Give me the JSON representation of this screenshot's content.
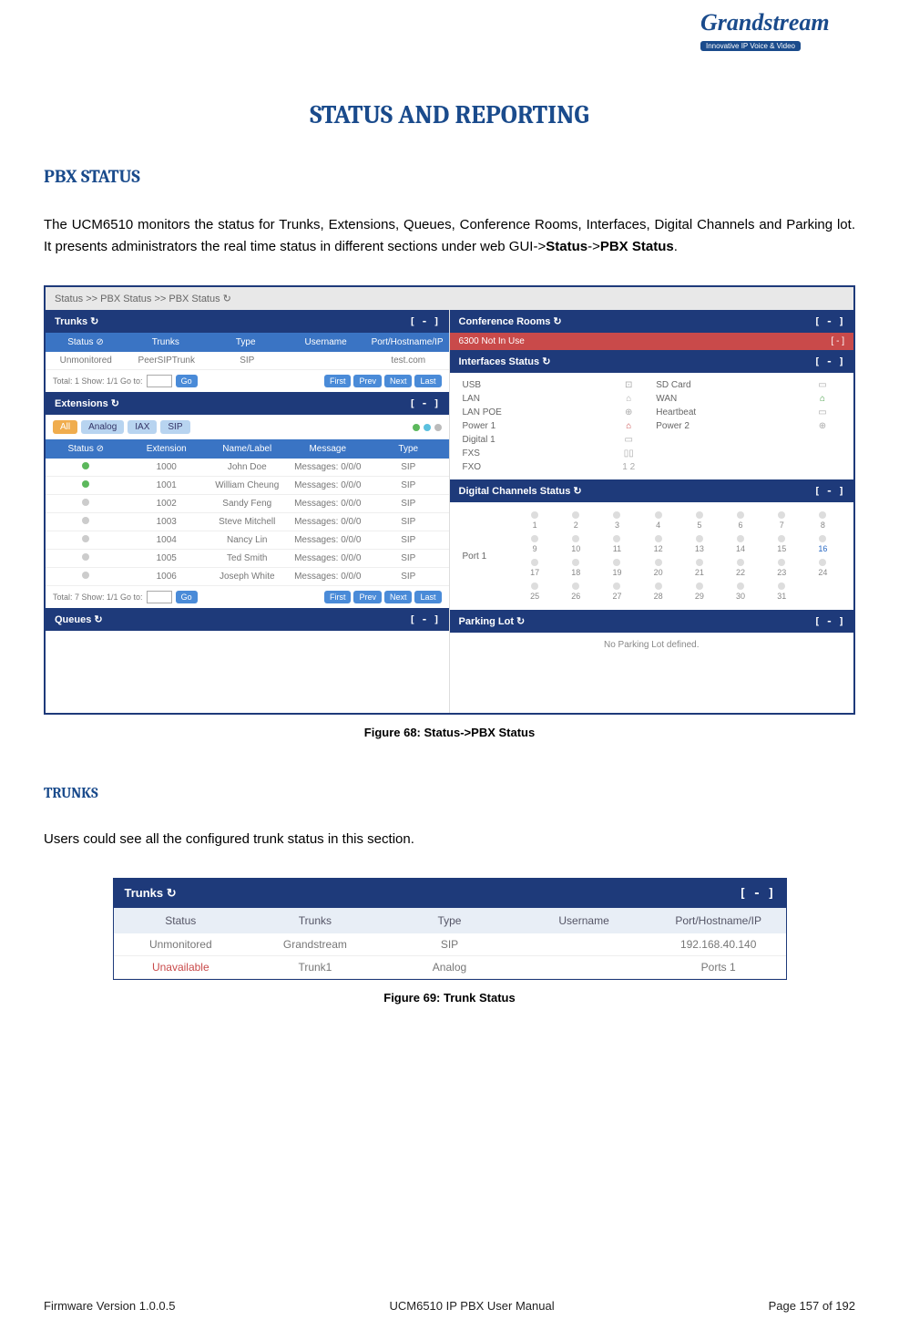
{
  "logo": {
    "brand": "Grandstream",
    "tagline": "Innovative IP Voice & Video"
  },
  "title": "STATUS AND REPORTING",
  "section1": {
    "heading": "PBX STATUS",
    "paragraph": "The UCM6510 monitors the status for Trunks, Extensions, Queues, Conference Rooms, Interfaces, Digital Channels and Parking lot. It presents administrators the real time status in different sections under web GUI->",
    "bold1": "Status",
    "mid": "->",
    "bold2": "PBX Status",
    "end": "."
  },
  "fig68_caption": "Figure 68: Status->PBX Status",
  "shot1": {
    "breadcrumb": "Status >> PBX Status >> PBX Status  ↻",
    "trunks": {
      "title": "Trunks  ↻",
      "collapse": "[ - ]",
      "cols": [
        "Status ⊘",
        "Trunks",
        "Type",
        "Username",
        "Port/Hostname/IP"
      ],
      "row": [
        "Unmonitored",
        "PeerSIPTrunk",
        "SIP",
        "",
        "test.com"
      ],
      "pager_left": "Total: 1   Show: 1/1   Go to:",
      "pager_go": "Go",
      "btns": [
        "First",
        "Prev",
        "Next",
        "Last"
      ]
    },
    "ext": {
      "title": "Extensions  ↻",
      "collapse": "[ - ]",
      "tabs": [
        "All",
        "Analog",
        "IAX",
        "SIP"
      ],
      "cols": [
        "Status ⊘",
        "Extension",
        "Name/Label",
        "Message",
        "Type"
      ],
      "rows": [
        {
          "s": "green",
          "ext": "1000",
          "name": "John Doe",
          "msg": "Messages: 0/0/0",
          "type": "SIP"
        },
        {
          "s": "green",
          "ext": "1001",
          "name": "William Cheung",
          "msg": "Messages: 0/0/0",
          "type": "SIP"
        },
        {
          "s": "grey",
          "ext": "1002",
          "name": "Sandy Feng",
          "msg": "Messages: 0/0/0",
          "type": "SIP"
        },
        {
          "s": "grey",
          "ext": "1003",
          "name": "Steve Mitchell",
          "msg": "Messages: 0/0/0",
          "type": "SIP"
        },
        {
          "s": "grey",
          "ext": "1004",
          "name": "Nancy Lin",
          "msg": "Messages: 0/0/0",
          "type": "SIP"
        },
        {
          "s": "grey",
          "ext": "1005",
          "name": "Ted Smith",
          "msg": "Messages: 0/0/0",
          "type": "SIP"
        },
        {
          "s": "grey",
          "ext": "1006",
          "name": "Joseph White",
          "msg": "Messages: 0/0/0",
          "type": "SIP"
        }
      ],
      "pager_left": "Total: 7   Show: 1/1   Go to:",
      "pager_go": "Go",
      "btns": [
        "First",
        "Prev",
        "Next",
        "Last"
      ]
    },
    "queues": {
      "title": "Queues  ↻",
      "collapse": "[ - ]"
    },
    "conf": {
      "title": "Conference Rooms  ↻",
      "collapse": "[ - ]",
      "row_left": "6300",
      "row_right": "Not In Use",
      "row_badge": "[ - ]"
    },
    "iface": {
      "title": "Interfaces Status  ↻",
      "collapse": "[ - ]",
      "rows": [
        {
          "l": "USB",
          "li": "⊡",
          "lc": "",
          "r": "SD Card",
          "ri": "▭",
          "rc": ""
        },
        {
          "l": "LAN",
          "li": "⌂",
          "lc": "",
          "r": "WAN",
          "ri": "⌂",
          "rc": "green"
        },
        {
          "l": "LAN POE",
          "li": "⊕",
          "lc": "",
          "r": "Heartbeat",
          "ri": "▭",
          "rc": ""
        },
        {
          "l": "Power 1",
          "li": "⌂",
          "lc": "red",
          "r": "Power 2",
          "ri": "⊕",
          "rc": ""
        },
        {
          "l": "Digital 1",
          "li": "▭",
          "lc": "",
          "r": "",
          "ri": "",
          "rc": ""
        },
        {
          "l": "FXS",
          "li": "▯▯",
          "lc": "",
          "r": "",
          "ri": "",
          "rc": ""
        },
        {
          "l": "FXO",
          "li": "1 2",
          "lc": "",
          "r": "",
          "ri": "",
          "rc": ""
        }
      ]
    },
    "digital": {
      "title": "Digital Channels Status  ↻",
      "collapse": "[ - ]",
      "port": "Port 1",
      "channels": [
        1,
        2,
        3,
        4,
        5,
        6,
        7,
        8,
        9,
        10,
        11,
        12,
        13,
        14,
        15,
        16,
        17,
        18,
        19,
        20,
        21,
        22,
        23,
        24,
        25,
        26,
        27,
        28,
        29,
        30,
        31
      ],
      "blue_channel": 16
    },
    "parking": {
      "title": "Parking Lot  ↻",
      "collapse": "[ - ]",
      "empty": "No Parking Lot defined."
    }
  },
  "section2": {
    "heading": "TRUNKS",
    "paragraph": "Users could see all the configured trunk status in this section."
  },
  "shot2": {
    "title": "Trunks  ↻",
    "collapse": "[ - ]",
    "cols": [
      "Status",
      "Trunks",
      "Type",
      "Username",
      "Port/Hostname/IP"
    ],
    "rows": [
      {
        "status": "Unmonitored",
        "cls": "",
        "trunk": "Grandstream",
        "type": "SIP",
        "user": "",
        "host": "192.168.40.140"
      },
      {
        "status": "Unavailable",
        "cls": "unavail",
        "trunk": "Trunk1",
        "type": "Analog",
        "user": "",
        "host": "Ports 1"
      }
    ]
  },
  "fig69_caption": "Figure 69: Trunk Status",
  "footer": {
    "left": "Firmware Version 1.0.0.5",
    "center": "UCM6510 IP PBX User Manual",
    "right": "Page 157 of 192"
  }
}
